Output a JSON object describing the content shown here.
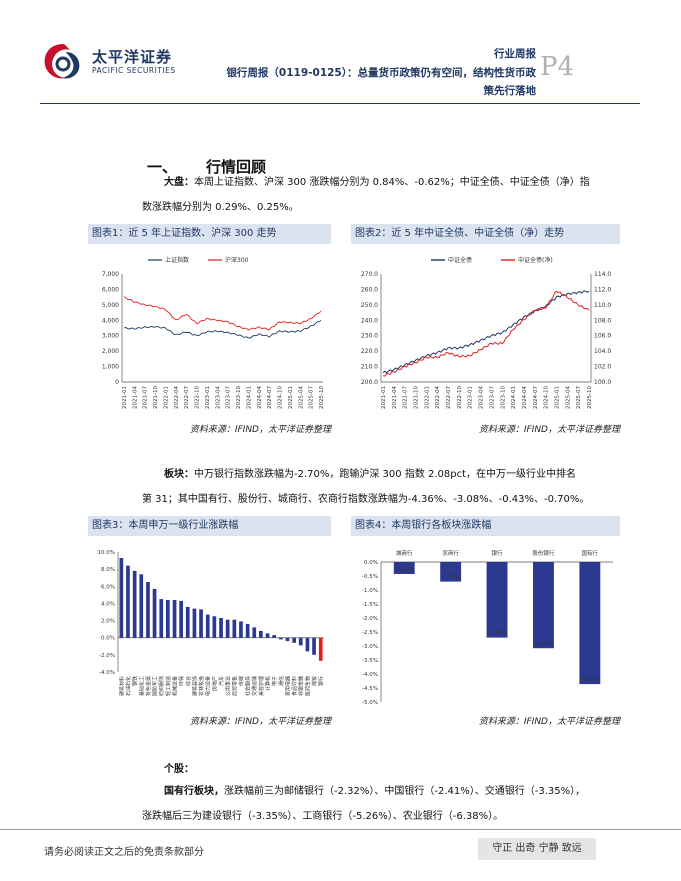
{
  "header": {
    "logo_cn": "太平洋证券",
    "logo_en": "PACIFIC SECURITIES",
    "report_kind": "行业周报",
    "title_line1": "银行周报（0119-0125）：总量货币政策仍有空间，结构性货币政",
    "title_line2": "策先行落地",
    "page_no": "P4"
  },
  "section": {
    "number": "一、",
    "title": "行情回顾"
  },
  "para1": {
    "lead": "大盘：",
    "text1": "本周上证指数、沪深 300 涨跌幅分别为 0.84%、-0.62%；中证全债、中证全债（净）指",
    "text2": "数涨跌幅分别为 0.29%、0.25%。"
  },
  "para2": {
    "lead": "板块：",
    "text1": "中万银行指数涨跌幅为-2.70%，跑输沪深 300 指数 2.08pct，在中万一级行业中排名",
    "text2": "第 31；其中国有行、股份行、城商行、农商行指数涨跌幅为-4.36%、-3.08%、-0.43%、-0.70%。"
  },
  "sub_head": "个股：",
  "para3": {
    "lead": "国有行板块，",
    "text1": "涨跌幅前三为邮储银行（-2.32%）、中国银行（-2.41%）、交通银行（-3.35%），",
    "text2": "涨跌幅后三为建设银行（-3.35%）、工商银行（-5.26%）、农业银行（-6.38%）。"
  },
  "figures": {
    "fig1_title": "图表1：近 5 年上证指数、沪深 300 走势",
    "fig2_title": "图表2：近 5 年中证全债、中证全债（净）走势",
    "fig3_title": "图表3：本周申万一级行业涨跌幅",
    "fig4_title": "图表4：本周银行各板块涨跌幅",
    "source": "资料来源：IFIND，太平洋证券整理"
  },
  "footer": {
    "disclaimer": "请务必阅读正文之后的免责条款部分",
    "motto": "守正 出奇 宁静 致远"
  },
  "colors": {
    "navy": "#1f3864",
    "red": "#e02020",
    "bar": "#2b3990",
    "title_bg": "#dce3f0"
  },
  "chart_data": [
    {
      "type": "line",
      "title": "近 5 年上证指数、沪深 300 走势",
      "x": [
        "2021-01",
        "2021-04",
        "2021-07",
        "2021-10",
        "2022-01",
        "2022-04",
        "2022-07",
        "2022-10",
        "2023-01",
        "2023-04",
        "2023-07",
        "2023-10",
        "2024-01",
        "2024-04",
        "2024-07",
        "2024-10",
        "2025-01",
        "2025-04",
        "2025-07",
        "2025-10"
      ],
      "ylim": [
        0,
        7000
      ],
      "yticks": [
        "0",
        "1,000",
        "2,000",
        "3,000",
        "4,000",
        "5,000",
        "6,000",
        "7,000"
      ],
      "series": [
        {
          "name": "上证指数",
          "color": "#1f3864",
          "values": [
            3500,
            3450,
            3550,
            3580,
            3500,
            3050,
            3250,
            3000,
            3250,
            3300,
            3200,
            3050,
            2850,
            3100,
            2950,
            3300,
            3250,
            3300,
            3600,
            4000
          ]
        },
        {
          "name": "沪深300",
          "color": "#e02020",
          "values": [
            5500,
            5200,
            5000,
            4900,
            4700,
            4000,
            4400,
            3800,
            4100,
            4000,
            3900,
            3600,
            3400,
            3550,
            3400,
            3900,
            3850,
            3800,
            4100,
            4600
          ]
        }
      ]
    },
    {
      "type": "line",
      "title": "近 5 年中证全债、中证全债（净）走势",
      "x": [
        "2021-01",
        "2021-04",
        "2021-07",
        "2021-10",
        "2022-01",
        "2022-04",
        "2022-07",
        "2022-10",
        "2023-01",
        "2023-04",
        "2023-07",
        "2023-10",
        "2024-01",
        "2024-04",
        "2024-07",
        "2024-10",
        "2025-01",
        "2025-04",
        "2025-07",
        "2025-10"
      ],
      "ylim_left": [
        200,
        270
      ],
      "ylim_right": [
        100,
        114
      ],
      "yticks_left": [
        "200.0",
        "210.0",
        "220.0",
        "230.0",
        "240.0",
        "250.0",
        "260.0",
        "270.0"
      ],
      "yticks_right": [
        "100.0",
        "102.0",
        "104.0",
        "106.0",
        "108.0",
        "110.0",
        "112.0",
        "114.0"
      ],
      "series": [
        {
          "name": "中证全债",
          "axis": "left",
          "color": "#1f3864",
          "values": [
            206,
            208,
            211,
            214,
            217,
            219,
            222,
            222,
            224,
            227,
            230,
            232,
            237,
            242,
            246,
            249,
            255,
            257,
            258,
            259
          ]
        },
        {
          "name": "中证全债(净)",
          "axis": "right",
          "color": "#e02020",
          "values": [
            100.8,
            101.3,
            102.0,
            102.5,
            103.2,
            103.2,
            103.8,
            103.3,
            103.4,
            104.2,
            105.0,
            105.0,
            106.8,
            108.1,
            109.3,
            109.6,
            111.8,
            111.0,
            110.0,
            109.3
          ]
        }
      ]
    },
    {
      "type": "bar",
      "title": "本周申万一级行业涨跌幅",
      "ylim": [
        -4,
        10
      ],
      "yticks": [
        "-4.0%",
        "-2.0%",
        "0.0%",
        "2.0%",
        "4.0%",
        "6.0%",
        "8.0%",
        "10.0%"
      ],
      "categories": [
        "建筑材料",
        "石油石化",
        "钢铁",
        "基础化工",
        "有色金属",
        "国防军工",
        "纺织服饰",
        "轻工制造",
        "机械设备",
        "环保",
        "综合",
        "建筑装饰",
        "农林牧渔",
        "电力设备",
        "房地产",
        "汽车",
        "公用事业",
        "商贸零售",
        "传媒",
        "社会服务",
        "交通运输",
        "美容护理",
        "计算机",
        "电子",
        "通信",
        "家用电器",
        "食品饮料",
        "非银金融",
        "医药生物",
        "煤炭",
        "银行"
      ],
      "values": [
        9.3,
        8.4,
        7.8,
        7.4,
        6.5,
        5.7,
        4.5,
        4.4,
        4.4,
        4.3,
        3.6,
        3.4,
        3.3,
        2.7,
        2.5,
        2.3,
        2.1,
        2.1,
        1.9,
        1.6,
        1.2,
        0.8,
        0.5,
        0.3,
        -0.2,
        -0.4,
        -0.6,
        -0.9,
        -1.6,
        -2.0,
        -2.7
      ]
    },
    {
      "type": "bar",
      "title": "本周银行各板块涨跌幅",
      "ylim": [
        -5,
        0
      ],
      "yticks": [
        "0.0%",
        "-0.5%",
        "-1.0%",
        "-1.5%",
        "-2.0%",
        "-2.5%",
        "-3.0%",
        "-3.5%",
        "-4.0%",
        "-4.5%",
        "-5.0%"
      ],
      "categories": [
        "城商行",
        "农商行",
        "银行",
        "股份银行",
        "国有行"
      ],
      "values": [
        -0.43,
        -0.7,
        -2.7,
        -3.08,
        -4.36
      ],
      "data_labels": [
        "-0.43%",
        "-0.70%",
        "-2.70%",
        "-3.08%",
        "-4.36%"
      ]
    }
  ]
}
